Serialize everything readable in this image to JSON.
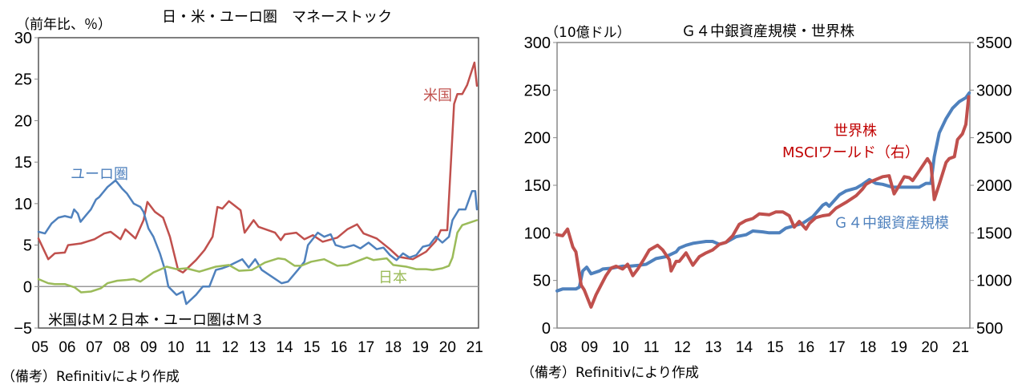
{
  "chart_data": [
    {
      "type": "line",
      "title": "日・米・ユーロ圏　マネーストック",
      "ylabel": "（前年比、％）",
      "xlabel": "",
      "note": "米国はＭ２日本・ユーロ圏はＭ３",
      "source": "（備考）Refinitivにより作成",
      "xlim": [
        2005,
        2021.2
      ],
      "ylim": [
        -5,
        30
      ],
      "yticks": [
        -5,
        0,
        5,
        10,
        15,
        20,
        25,
        30
      ],
      "ytick_labels": [
        "−5",
        "0",
        "5",
        "10",
        "15",
        "20",
        "25",
        "30"
      ],
      "xticks": [
        2005,
        2006,
        2007,
        2008,
        2009,
        2010,
        2011,
        2012,
        2013,
        2014,
        2015,
        2016,
        2017,
        2018,
        2019,
        2020,
        2021
      ],
      "xtick_labels": [
        "05",
        "06",
        "07",
        "08",
        "09",
        "10",
        "11",
        "12",
        "13",
        "14",
        "15",
        "16",
        "17",
        "18",
        "19",
        "20",
        "21"
      ],
      "series": [
        {
          "name": "米国",
          "color": "#c0504d",
          "x": [
            2005.0,
            2005.36,
            2005.6,
            2005.97,
            2006.09,
            2006.57,
            2007.06,
            2007.42,
            2007.66,
            2008.02,
            2008.2,
            2008.57,
            2008.87,
            2009.01,
            2009.29,
            2009.59,
            2009.84,
            2010.14,
            2010.32,
            2010.8,
            2011.11,
            2011.41,
            2011.59,
            2011.77,
            2012.01,
            2012.44,
            2012.59,
            2012.92,
            2013.1,
            2013.71,
            2013.92,
            2014.07,
            2014.49,
            2014.79,
            2015.1,
            2015.46,
            2016.0,
            2016.37,
            2016.73,
            2016.97,
            2017.45,
            2017.94,
            2018.24,
            2018.78,
            2019.27,
            2019.63,
            2019.81,
            2020.05,
            2020.3,
            2020.42,
            2020.6,
            2020.78,
            2021.05,
            2021.14
          ],
          "y": [
            5.8,
            3.3,
            4.0,
            4.1,
            5.0,
            5.2,
            5.7,
            6.4,
            6.6,
            5.7,
            6.9,
            5.8,
            8.0,
            10.2,
            9.0,
            8.3,
            6.0,
            2.0,
            1.7,
            3.2,
            4.4,
            6.0,
            9.6,
            9.4,
            10.3,
            9.2,
            6.5,
            8.0,
            7.2,
            6.5,
            5.6,
            6.3,
            6.5,
            5.7,
            6.2,
            5.4,
            5.9,
            6.9,
            7.5,
            6.4,
            5.8,
            4.5,
            3.6,
            3.3,
            4.2,
            5.5,
            6.8,
            6.8,
            22.0,
            23.2,
            23.2,
            24.3,
            27.0,
            24.2
          ]
        },
        {
          "name": "ユーロ圏",
          "color": "#4f81bd",
          "x": [
            2005.0,
            2005.24,
            2005.48,
            2005.73,
            2005.97,
            2006.21,
            2006.31,
            2006.45,
            2006.55,
            2006.75,
            2006.93,
            2007.12,
            2007.24,
            2007.54,
            2007.84,
            2008.08,
            2008.26,
            2008.51,
            2008.75,
            2008.87,
            2009.05,
            2009.23,
            2009.47,
            2009.66,
            2009.78,
            2010.08,
            2010.32,
            2010.44,
            2010.8,
            2011.05,
            2011.29,
            2011.53,
            2011.77,
            2012.01,
            2012.5,
            2012.74,
            2012.98,
            2013.22,
            2013.59,
            2013.95,
            2014.19,
            2014.55,
            2014.79,
            2014.92,
            2015.28,
            2015.52,
            2015.76,
            2015.94,
            2016.25,
            2016.61,
            2016.85,
            2017.15,
            2017.45,
            2017.7,
            2017.94,
            2018.18,
            2018.42,
            2018.66,
            2018.91,
            2019.15,
            2019.39,
            2019.63,
            2019.87,
            2020.11,
            2020.24,
            2020.48,
            2020.72,
            2020.96,
            2021.08,
            2021.14
          ],
          "y": [
            6.6,
            6.4,
            7.6,
            8.3,
            8.5,
            8.3,
            9.3,
            8.8,
            7.8,
            8.6,
            9.3,
            10.5,
            10.8,
            12.0,
            12.8,
            11.8,
            11.2,
            10.0,
            9.6,
            9.0,
            7.0,
            6.0,
            4.0,
            2.0,
            0.0,
            -1.0,
            -0.6,
            -2.1,
            -1.0,
            0.0,
            0.0,
            2.0,
            2.2,
            2.5,
            3.3,
            2.3,
            3.3,
            2.0,
            1.2,
            0.4,
            0.6,
            2.0,
            3.0,
            5.0,
            6.5,
            6.0,
            6.3,
            5.0,
            4.7,
            5.0,
            4.6,
            5.3,
            4.5,
            4.7,
            3.8,
            3.2,
            4.0,
            3.5,
            3.8,
            4.8,
            5.0,
            6.0,
            5.3,
            6.0,
            8.0,
            9.3,
            9.3,
            11.5,
            11.5,
            9.3
          ]
        },
        {
          "name": "日本",
          "color": "#9bbb59",
          "x": [
            2005.0,
            2005.36,
            2005.6,
            2005.97,
            2006.33,
            2006.57,
            2006.93,
            2007.3,
            2007.54,
            2007.9,
            2008.26,
            2008.51,
            2008.75,
            2009.23,
            2009.72,
            2010.08,
            2010.44,
            2010.92,
            2011.53,
            2012.01,
            2012.38,
            2012.86,
            2013.34,
            2013.83,
            2014.07,
            2014.43,
            2014.67,
            2015.04,
            2015.52,
            2016.0,
            2016.37,
            2016.61,
            2017.09,
            2017.33,
            2017.82,
            2018.06,
            2018.54,
            2018.91,
            2019.27,
            2019.51,
            2019.87,
            2020.11,
            2020.24,
            2020.42,
            2020.6,
            2020.96,
            2021.14
          ],
          "y": [
            0.9,
            0.4,
            0.3,
            0.3,
            -0.1,
            -0.7,
            -0.6,
            -0.2,
            0.4,
            0.7,
            0.8,
            0.9,
            0.6,
            1.7,
            2.4,
            2.1,
            2.2,
            1.8,
            2.4,
            2.6,
            1.9,
            2.0,
            2.9,
            3.4,
            3.3,
            2.5,
            2.5,
            3.0,
            3.3,
            2.5,
            2.6,
            2.9,
            3.5,
            3.2,
            3.4,
            2.6,
            2.4,
            2.1,
            2.1,
            2.0,
            2.2,
            2.5,
            3.5,
            6.5,
            7.4,
            7.8,
            8.0
          ]
        }
      ]
    },
    {
      "type": "line",
      "title": "Ｇ４中銀資産規模・世界株",
      "ylabel": "（10億ドル）",
      "xlabel": "",
      "source": "（備考）Refinitivにより作成",
      "xlim": [
        2008,
        2021.35
      ],
      "ylim": [
        0,
        300
      ],
      "ylim_right": [
        500,
        3500
      ],
      "yticks": [
        0,
        50,
        100,
        150,
        200,
        250,
        300
      ],
      "yticks_right": [
        500,
        1000,
        1500,
        2000,
        2500,
        3000,
        3500
      ],
      "xticks": [
        2008,
        2009,
        2010,
        2011,
        2012,
        2013,
        2014,
        2015,
        2016,
        2017,
        2018,
        2019,
        2020,
        2021
      ],
      "xtick_labels": [
        "08",
        "09",
        "10",
        "11",
        "12",
        "13",
        "14",
        "15",
        "16",
        "17",
        "18",
        "19",
        "20",
        "21"
      ],
      "series": [
        {
          "name": "Ｇ４中銀資産規模",
          "axis": "left",
          "color": "#4f81bd",
          "x": [
            2008.0,
            2008.18,
            2008.61,
            2008.72,
            2008.83,
            2008.96,
            2009.1,
            2009.37,
            2009.48,
            2009.8,
            2010.12,
            2010.34,
            2010.66,
            2010.88,
            2011.2,
            2011.52,
            2011.85,
            2011.95,
            2012.17,
            2012.39,
            2012.6,
            2012.82,
            2013.03,
            2013.25,
            2013.46,
            2013.79,
            2014.11,
            2014.33,
            2014.65,
            2014.86,
            2015.19,
            2015.4,
            2015.73,
            2015.94,
            2016.27,
            2016.59,
            2016.7,
            2016.8,
            2017.13,
            2017.34,
            2017.67,
            2017.88,
            2018.1,
            2018.31,
            2018.53,
            2018.85,
            2019.17,
            2019.5,
            2019.71,
            2019.93,
            2020.09,
            2020.2,
            2020.36,
            2020.58,
            2020.79,
            2021.01,
            2021.22,
            2021.33
          ],
          "y": [
            39,
            41,
            41,
            43,
            60,
            64,
            57,
            60,
            62,
            63,
            65,
            65,
            66,
            67,
            73,
            75,
            80,
            84,
            87,
            89,
            90,
            91,
            91,
            88,
            90,
            96,
            98,
            102,
            101,
            100,
            100,
            105,
            108,
            110,
            117,
            129,
            131,
            128,
            140,
            144,
            147,
            151,
            156,
            152,
            151,
            148,
            148,
            148,
            148,
            152,
            152,
            180,
            205,
            220,
            231,
            238,
            242,
            247
          ]
        },
        {
          "name": "世界株 MSCIワールド（右）",
          "axis": "right",
          "color": "#c0504d",
          "x": [
            2008.0,
            2008.18,
            2008.34,
            2008.51,
            2008.61,
            2008.78,
            2008.88,
            2009.1,
            2009.26,
            2009.42,
            2009.58,
            2009.75,
            2009.91,
            2010.12,
            2010.28,
            2010.45,
            2010.61,
            2010.82,
            2010.98,
            2011.25,
            2011.42,
            2011.63,
            2011.69,
            2011.85,
            2011.95,
            2012.17,
            2012.39,
            2012.6,
            2012.82,
            2013.03,
            2013.25,
            2013.46,
            2013.68,
            2013.89,
            2014.11,
            2014.33,
            2014.54,
            2014.86,
            2015.08,
            2015.3,
            2015.51,
            2015.67,
            2015.83,
            2016.05,
            2016.16,
            2016.37,
            2016.59,
            2016.8,
            2017.02,
            2017.34,
            2017.67,
            2017.88,
            2017.99,
            2018.15,
            2018.31,
            2018.53,
            2018.74,
            2018.9,
            2019.07,
            2019.23,
            2019.39,
            2019.5,
            2019.71,
            2019.98,
            2020.09,
            2020.2,
            2020.36,
            2020.58,
            2020.68,
            2020.85,
            2020.95,
            2021.11,
            2021.22,
            2021.31
          ],
          "y": [
            1480,
            1470,
            1540,
            1350,
            1300,
            950,
            900,
            720,
            850,
            950,
            1050,
            1130,
            1150,
            1120,
            1170,
            1050,
            1120,
            1230,
            1320,
            1370,
            1320,
            1220,
            1100,
            1200,
            1200,
            1290,
            1160,
            1250,
            1290,
            1320,
            1380,
            1400,
            1470,
            1590,
            1630,
            1650,
            1700,
            1690,
            1720,
            1720,
            1680,
            1560,
            1620,
            1540,
            1600,
            1660,
            1680,
            1690,
            1760,
            1820,
            1890,
            1960,
            2010,
            2040,
            2060,
            2090,
            2100,
            1910,
            2000,
            2090,
            2080,
            2050,
            2150,
            2280,
            2220,
            1850,
            2010,
            2240,
            2280,
            2300,
            2480,
            2540,
            2640,
            2930
          ]
        }
      ],
      "annotations": {
        "stock_line1": "世界株",
        "stock_line2": "MSCIワールド（右）",
        "cb": "Ｇ４中銀資産規模"
      }
    }
  ]
}
